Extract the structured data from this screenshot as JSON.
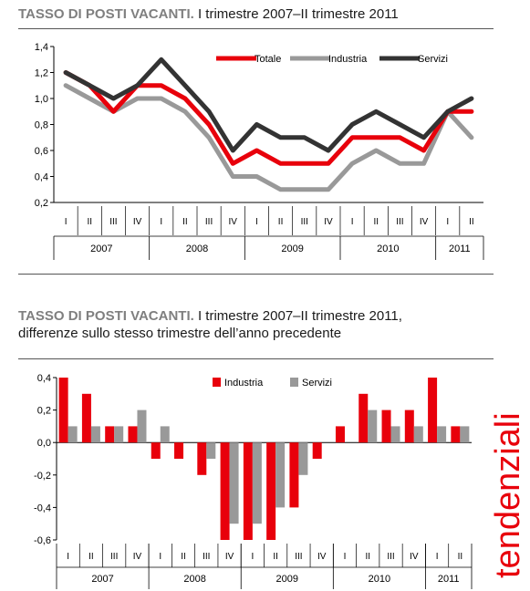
{
  "chart1": {
    "title_bold": "TASSO DI POSTI VACANTI.",
    "title_rest": " I trimestre 2007–II trimestre 2011"
  },
  "chart2": {
    "title_bold": "TASSO DI POSTI VACANTI.",
    "title_rest": " I trimestre 2007–II trimestre 2011,",
    "title_line2": "differenze sullo stesso trimestre dell’anno precedente"
  },
  "side_label": "tendenziali",
  "colors": {
    "red": "#e8000b",
    "gray": "#999999",
    "dark": "#333333"
  },
  "chart_data": [
    {
      "type": "line",
      "categories": [
        "I",
        "II",
        "III",
        "IV",
        "I",
        "II",
        "III",
        "IV",
        "I",
        "II",
        "III",
        "IV",
        "I",
        "II",
        "III",
        "IV",
        "I",
        "II"
      ],
      "groups": [
        {
          "label": "2007",
          "count": 4
        },
        {
          "label": "2008",
          "count": 4
        },
        {
          "label": "2009",
          "count": 4
        },
        {
          "label": "2010",
          "count": 4
        },
        {
          "label": "2011",
          "count": 2
        }
      ],
      "ylim": [
        0.2,
        1.4
      ],
      "yticks": [
        "0,2",
        "0,4",
        "0,6",
        "0,8",
        "1,0",
        "1,2",
        "1,4"
      ],
      "yticks_values": [
        0.2,
        0.4,
        0.6,
        0.8,
        1.0,
        1.2,
        1.4
      ],
      "series": [
        {
          "name": "Totale",
          "color": "#e8000b",
          "values": [
            1.2,
            1.1,
            0.9,
            1.1,
            1.1,
            1.0,
            0.8,
            0.5,
            0.6,
            0.5,
            0.5,
            0.5,
            0.7,
            0.7,
            0.7,
            0.6,
            0.9,
            0.9
          ]
        },
        {
          "name": "Industria",
          "color": "#999999",
          "values": [
            1.1,
            1.0,
            0.9,
            1.0,
            1.0,
            0.9,
            0.7,
            0.4,
            0.4,
            0.3,
            0.3,
            0.3,
            0.5,
            0.6,
            0.5,
            0.5,
            0.9,
            0.7
          ]
        },
        {
          "name": "Servizi",
          "color": "#333333",
          "values": [
            1.2,
            1.1,
            1.0,
            1.1,
            1.3,
            1.1,
            0.9,
            0.6,
            0.8,
            0.7,
            0.7,
            0.6,
            0.8,
            0.9,
            0.8,
            0.7,
            0.9,
            1.0
          ]
        }
      ],
      "legend": "top-right"
    },
    {
      "type": "bar",
      "categories": [
        "I",
        "II",
        "III",
        "IV",
        "I",
        "II",
        "III",
        "IV",
        "I",
        "II",
        "III",
        "IV",
        "I",
        "II",
        "III",
        "IV",
        "I",
        "II"
      ],
      "groups": [
        {
          "label": "2007",
          "count": 4
        },
        {
          "label": "2008",
          "count": 4
        },
        {
          "label": "2009",
          "count": 4
        },
        {
          "label": "2010",
          "count": 4
        },
        {
          "label": "2011",
          "count": 2
        }
      ],
      "ylim": [
        -0.6,
        0.4
      ],
      "yticks": [
        "-0,6",
        "-0,4",
        "-0,2",
        "0,0",
        "0,2",
        "0,4"
      ],
      "yticks_values": [
        -0.6,
        -0.4,
        -0.2,
        0.0,
        0.2,
        0.4
      ],
      "series": [
        {
          "name": "Industria",
          "color": "#e8000b",
          "values": [
            0.4,
            0.3,
            0.1,
            0.1,
            -0.1,
            -0.1,
            -0.2,
            -0.6,
            -0.6,
            -0.6,
            -0.4,
            -0.1,
            0.1,
            0.3,
            0.2,
            0.2,
            0.4,
            0.1
          ]
        },
        {
          "name": "Servizi",
          "color": "#999999",
          "values": [
            0.1,
            0.1,
            0.1,
            0.2,
            0.1,
            0.0,
            -0.1,
            -0.5,
            -0.5,
            -0.4,
            -0.2,
            0.0,
            0.0,
            0.2,
            0.1,
            0.1,
            0.1,
            0.1
          ]
        }
      ],
      "legend": "top-center"
    }
  ]
}
